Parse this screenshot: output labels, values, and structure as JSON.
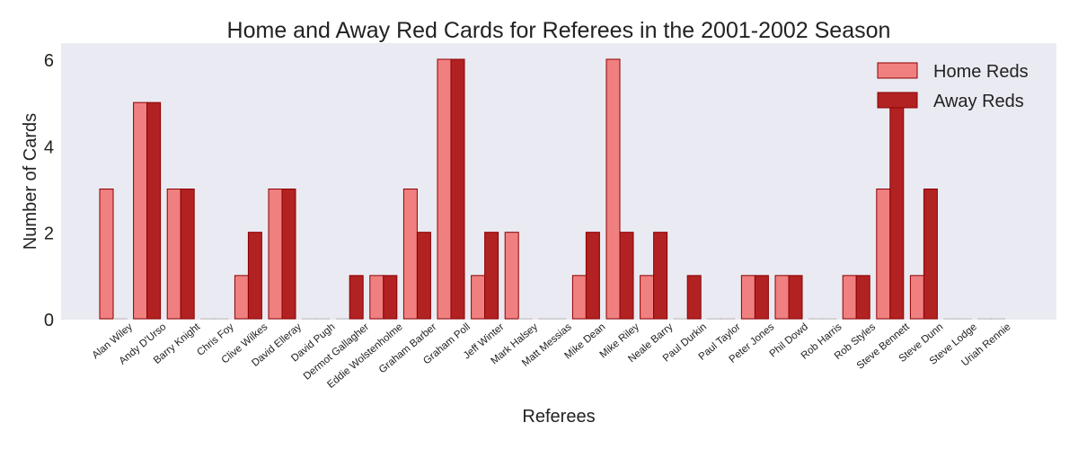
{
  "chart_data": {
    "type": "bar",
    "title": "Home and Away Red Cards for Referees in the 2001-2002 Season",
    "xlabel": "Referees",
    "ylabel": "Number of Cards",
    "ylim": [
      0,
      6.3
    ],
    "yticks": [
      0,
      2,
      4,
      6
    ],
    "grid": false,
    "legend_position": "top-right",
    "categories": [
      "Alan Wiley",
      "Andy D'Urso",
      "Barry Knight",
      "Chris Foy",
      "Clive Wilkes",
      "David Elleray",
      "David Pugh",
      "Dermot Gallagher",
      "Eddie Wolstenholme",
      "Graham Barber",
      "Graham Poll",
      "Jeff Winter",
      "Mark Halsey",
      "Matt Messias",
      "Mike Dean",
      "Mike Riley",
      "Neale Barry",
      "Paul Durkin",
      "Paul Taylor",
      "Peter Jones",
      "Phil Dowd",
      "Rob Harris",
      "Rob Styles",
      "Steve Bennett",
      "Steve Dunn",
      "Steve Lodge",
      "Uriah Rennie"
    ],
    "series": [
      {
        "name": "Home Reds",
        "color": "#F08080",
        "edge": "#8B0000",
        "values": [
          3,
          5,
          3,
          0,
          1,
          3,
          0,
          0,
          1,
          3,
          6,
          1,
          2,
          0,
          1,
          6,
          1,
          0,
          0,
          1,
          1,
          0,
          1,
          3,
          1,
          0,
          0
        ]
      },
      {
        "name": "Away Reds",
        "color": "#B22222",
        "edge": "#8B0000",
        "values": [
          0,
          5,
          3,
          0,
          2,
          3,
          0,
          1,
          1,
          2,
          6,
          2,
          0,
          0,
          2,
          2,
          2,
          1,
          0,
          1,
          1,
          0,
          1,
          5,
          3,
          0,
          0
        ]
      }
    ]
  },
  "colors": {
    "plot_background": "#EAEAF2",
    "text": "#222222"
  }
}
